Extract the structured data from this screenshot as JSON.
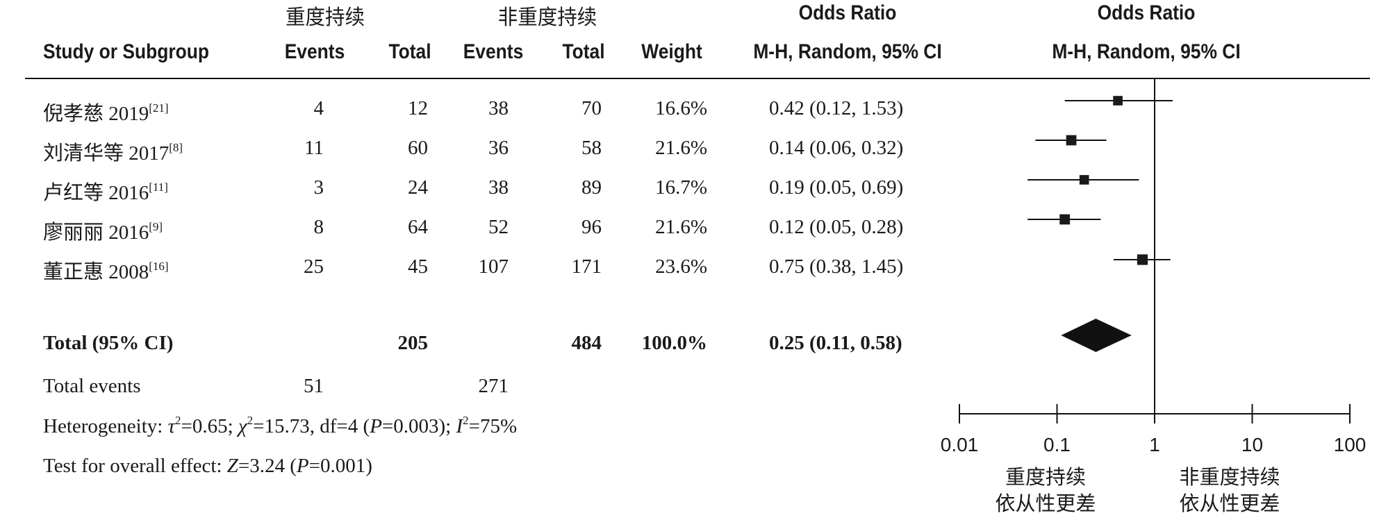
{
  "header": {
    "group1_label": "重度持续",
    "group2_label": "非重度持续",
    "col_study": "Study or Subgroup",
    "col_events1": "Events",
    "col_total1": "Total",
    "col_events2": "Events",
    "col_total2": "Total",
    "col_weight": "Weight",
    "or_title_table": "Odds Ratio",
    "or_sub_table": "M-H, Random, 95% CI",
    "or_title_plot": "Odds Ratio",
    "or_sub_plot": "M-H, Random, 95% CI"
  },
  "studies": [
    {
      "name": "倪孝慈 2019",
      "ref": "[21]",
      "events1": "4",
      "total1": "12",
      "events2": "38",
      "total2": "70",
      "weight": "16.6%",
      "ci_text": "0.42 (0.12, 1.53)"
    },
    {
      "name": "刘清华等 2017",
      "ref": "[8]",
      "events1": "11",
      "total1": "60",
      "events2": "36",
      "total2": "58",
      "weight": "21.6%",
      "ci_text": "0.14 (0.06, 0.32)"
    },
    {
      "name": "卢红等 2016",
      "ref": "[11]",
      "events1": "3",
      "total1": "24",
      "events2": "38",
      "total2": "89",
      "weight": "16.7%",
      "ci_text": "0.19 (0.05, 0.69)"
    },
    {
      "name": "廖丽丽 2016",
      "ref": "[9]",
      "events1": "8",
      "total1": "64",
      "events2": "52",
      "total2": "96",
      "weight": "21.6%",
      "ci_text": "0.12 (0.05, 0.28)"
    },
    {
      "name": "董正惠 2008",
      "ref": "[16]",
      "events1": "25",
      "total1": "45",
      "events2": "107",
      "total2": "171",
      "weight": "23.6%",
      "ci_text": "0.75 (0.38, 1.45)"
    }
  ],
  "total": {
    "label": "Total (95% CI)",
    "total1": "205",
    "total2": "484",
    "weight": "100.0%",
    "ci_text": "0.25 (0.11, 0.58)"
  },
  "total_events": {
    "label": "Total events",
    "events1": "51",
    "events2": "271"
  },
  "heterogeneity": {
    "label": "Heterogeneity: ",
    "tau2_sym": "τ",
    "tau2_val": "=0.65; ",
    "chi2_sym": "χ",
    "chi2_val": "=15.73, df=4 (",
    "p_sym": "P",
    "p_val": "=0.003); ",
    "i2_sym": "I",
    "i2_val": "=75%",
    "sq": "2"
  },
  "overall_effect": {
    "label": "Test for overall effect: ",
    "z_sym": "Z",
    "z_val": "=3.24 (",
    "p_sym": "P",
    "p_val": "=0.001)"
  },
  "favours": {
    "left_line1": "重度持续",
    "left_line2": "依从性更差",
    "right_line1": "非重度持续",
    "right_line2": "依从性更差"
  },
  "chart_data": {
    "type": "forest",
    "scale": "log",
    "xlim": [
      0.01,
      100
    ],
    "ticks": [
      0.01,
      0.1,
      1,
      10,
      100
    ],
    "tick_labels": [
      "0.01",
      "0.1",
      "1",
      "10",
      "100"
    ],
    "reference_line": 1,
    "studies": [
      {
        "label": "倪孝慈 2019",
        "or": 0.42,
        "lower": 0.12,
        "upper": 1.53,
        "weight": 16.6
      },
      {
        "label": "刘清华等 2017",
        "or": 0.14,
        "lower": 0.06,
        "upper": 0.32,
        "weight": 21.6
      },
      {
        "label": "卢红等 2016",
        "or": 0.19,
        "lower": 0.05,
        "upper": 0.69,
        "weight": 16.7
      },
      {
        "label": "廖丽丽 2016",
        "or": 0.12,
        "lower": 0.05,
        "upper": 0.28,
        "weight": 21.6
      },
      {
        "label": "董正惠 2008",
        "or": 0.75,
        "lower": 0.38,
        "upper": 1.45,
        "weight": 23.6
      }
    ],
    "pooled": {
      "or": 0.25,
      "lower": 0.11,
      "upper": 0.58
    }
  }
}
